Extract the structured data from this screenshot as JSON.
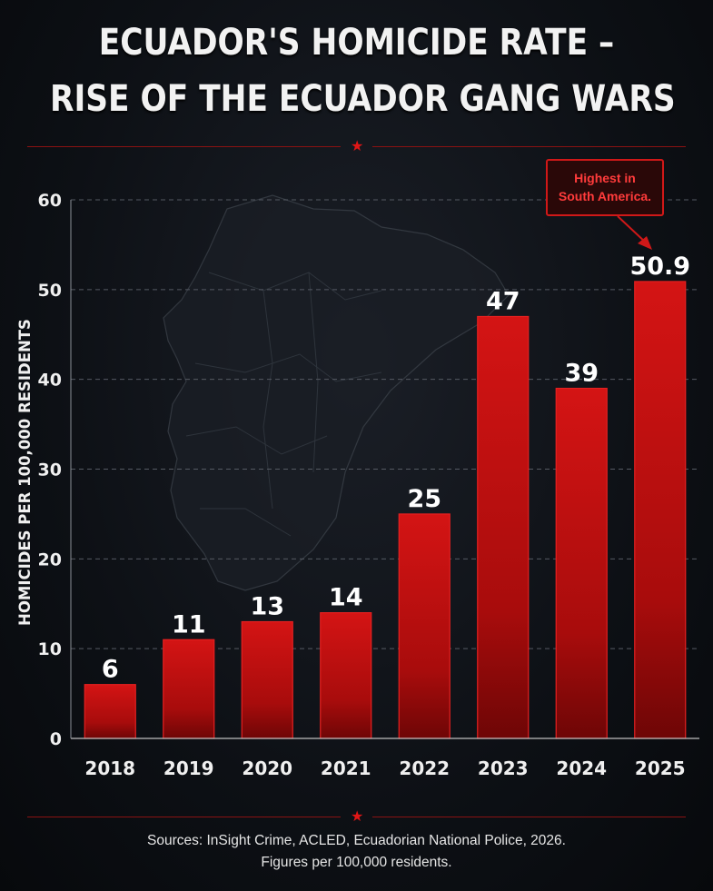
{
  "header": {
    "title_line1": "ECUADOR'S HOMICIDE RATE –",
    "title_line2": "RISE OF THE ECUADOR GANG WARS"
  },
  "callout": {
    "line1": "Highest in",
    "line2": "South America."
  },
  "footer": {
    "sources_line1": "Sources: InSight Crime, ACLED, Ecuadorian National Police, 2026.",
    "sources_line2": "Figures per 100,000 residents."
  },
  "colors": {
    "bar": "#c41010",
    "bar_dark": "#6e0606",
    "accent": "#e01616",
    "grid": "#555a63"
  },
  "chart_data": {
    "type": "bar",
    "title": "ECUADOR'S HOMICIDE RATE – RISE OF THE ECUADOR GANG WARS",
    "categories": [
      "2018",
      "2019",
      "2020",
      "2021",
      "2022",
      "2023",
      "2024",
      "2025"
    ],
    "values": [
      6,
      11,
      13,
      14,
      25,
      47,
      39,
      50.9
    ],
    "value_labels": [
      "6",
      "11",
      "13",
      "14",
      "25",
      "47",
      "39",
      "50.9"
    ],
    "ylabel": "HOMICIDES PER 100,000 RESIDENTS",
    "xlabel": "",
    "ylim": [
      0,
      60
    ],
    "yticks": [
      0,
      10,
      20,
      30,
      40,
      50,
      60
    ],
    "grid": true,
    "annotation": {
      "category": "2025",
      "text": "Highest in South America."
    }
  }
}
